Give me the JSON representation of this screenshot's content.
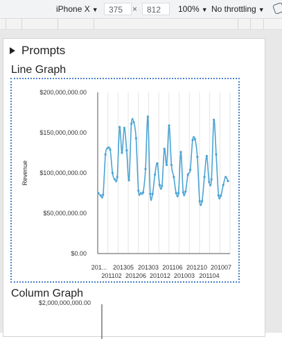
{
  "toolbar": {
    "device": "iPhone X",
    "width": "375",
    "times": "×",
    "height": "812",
    "zoom": "100%",
    "throttling": "No throttling",
    "caret": "▼"
  },
  "prompts": {
    "label": "Prompts"
  },
  "line_graph": {
    "title": "Line Graph",
    "chart_data": {
      "type": "line",
      "ylabel": "Revenue",
      "xlabel": "",
      "ylim": [
        0,
        200000000
      ],
      "yticks": [
        "$200,000,000.00",
        "$150,000,000.00",
        "$100,000,000.00",
        "$50,000,000.00",
        "$0.00"
      ],
      "xticks_row1": [
        "201...",
        "201305",
        "201303",
        "201106",
        "201210",
        "201007"
      ],
      "xticks_row2": [
        "201102",
        "201206",
        "201012",
        "201003",
        "201104"
      ],
      "grid": true,
      "series": [
        {
          "values": [
            75,
            72,
            73,
            123,
            131,
            129,
            100,
            92,
            95,
            157,
            125,
            156,
            128,
            91,
            161,
            163,
            143,
            78,
            75,
            76,
            105,
            170,
            74,
            74,
            98,
            112,
            85,
            84,
            130,
            110,
            159,
            110,
            95,
            75,
            75,
            126,
            76,
            77,
            98,
            104,
            141,
            142,
            120,
            65,
            65,
            95,
            121,
            89,
            92,
            166,
            123,
            72,
            72,
            85,
            95,
            90
          ]
        }
      ],
      "color": "#4aa3d4"
    }
  },
  "column_graph": {
    "title": "Column Graph",
    "ytick_top": "$2,000,000,000.00"
  }
}
